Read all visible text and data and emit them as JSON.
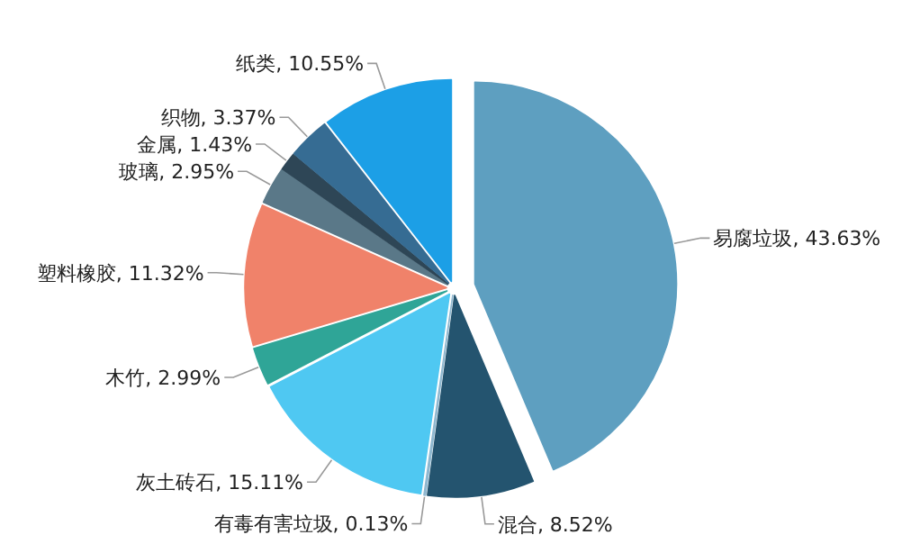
{
  "chart_data": {
    "type": "pie",
    "categories": [
      "易腐垃圾",
      "混合",
      "有毒有害垃圾",
      "灰土砖石",
      "木竹",
      "塑料橡胶",
      "玻璃",
      "金属",
      "织物",
      "纸类"
    ],
    "values": [
      43.63,
      8.52,
      0.13,
      15.11,
      2.99,
      11.32,
      2.95,
      1.43,
      3.37,
      10.55
    ],
    "colors": [
      "#5e9fc0",
      "#24546f",
      "#8fb8d0",
      "#4fc8f2",
      "#2fa597",
      "#f0826a",
      "#5a7888",
      "#2e4656",
      "#366c93",
      "#1c9fe6"
    ],
    "value_labels": [
      "43.63%",
      "8.52%",
      "0.13%",
      "15.11%",
      "2.99%",
      "11.32%",
      "2.95%",
      "1.43%",
      "3.37%",
      "10.55%"
    ],
    "legend": false
  }
}
